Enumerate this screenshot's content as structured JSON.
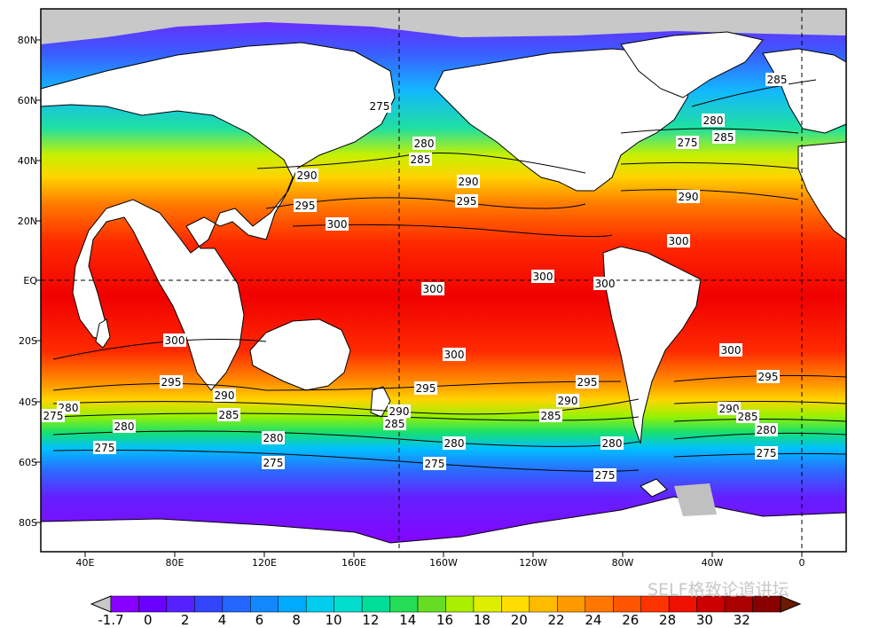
{
  "map": {
    "lat_labels": [
      "80N",
      "60N",
      "40N",
      "20N",
      "EQ",
      "20S",
      "40S",
      "60S",
      "80S"
    ],
    "lon_labels": [
      "40E",
      "80E",
      "120E",
      "160E",
      "160W",
      "120W",
      "80W",
      "40W",
      "0"
    ],
    "contour_labels": [
      "275",
      "280",
      "285",
      "290",
      "295",
      "300",
      "280",
      "285",
      "275",
      "290",
      "295",
      "300",
      "300",
      "300",
      "300",
      "300",
      "295",
      "290",
      "285",
      "280",
      "275",
      "290",
      "285",
      "280",
      "275",
      "300",
      "295",
      "290",
      "285",
      "280",
      "275",
      "280",
      "275",
      "295",
      "290",
      "285",
      "280",
      "275",
      "300",
      "295",
      "290",
      "285",
      "280",
      "275"
    ]
  },
  "colorbar": {
    "labels": [
      "-1.7",
      "0",
      "2",
      "4",
      "6",
      "8",
      "10",
      "12",
      "14",
      "16",
      "18",
      "20",
      "22",
      "24",
      "26",
      "28",
      "30",
      "32"
    ],
    "colors": [
      "#8800ff",
      "#6a00ff",
      "#5522ff",
      "#3344ff",
      "#2266ff",
      "#1188ff",
      "#00aaff",
      "#00ccee",
      "#00ddcc",
      "#00dd99",
      "#22dd55",
      "#66dd22",
      "#aaee00",
      "#ddee00",
      "#ffdd00",
      "#ffbb00",
      "#ff9900",
      "#ff7700",
      "#ff5500",
      "#ff3300",
      "#ee1100",
      "#cc0000",
      "#aa0000",
      "#880000"
    ]
  },
  "watermark": "SELF格致论道讲坛"
}
